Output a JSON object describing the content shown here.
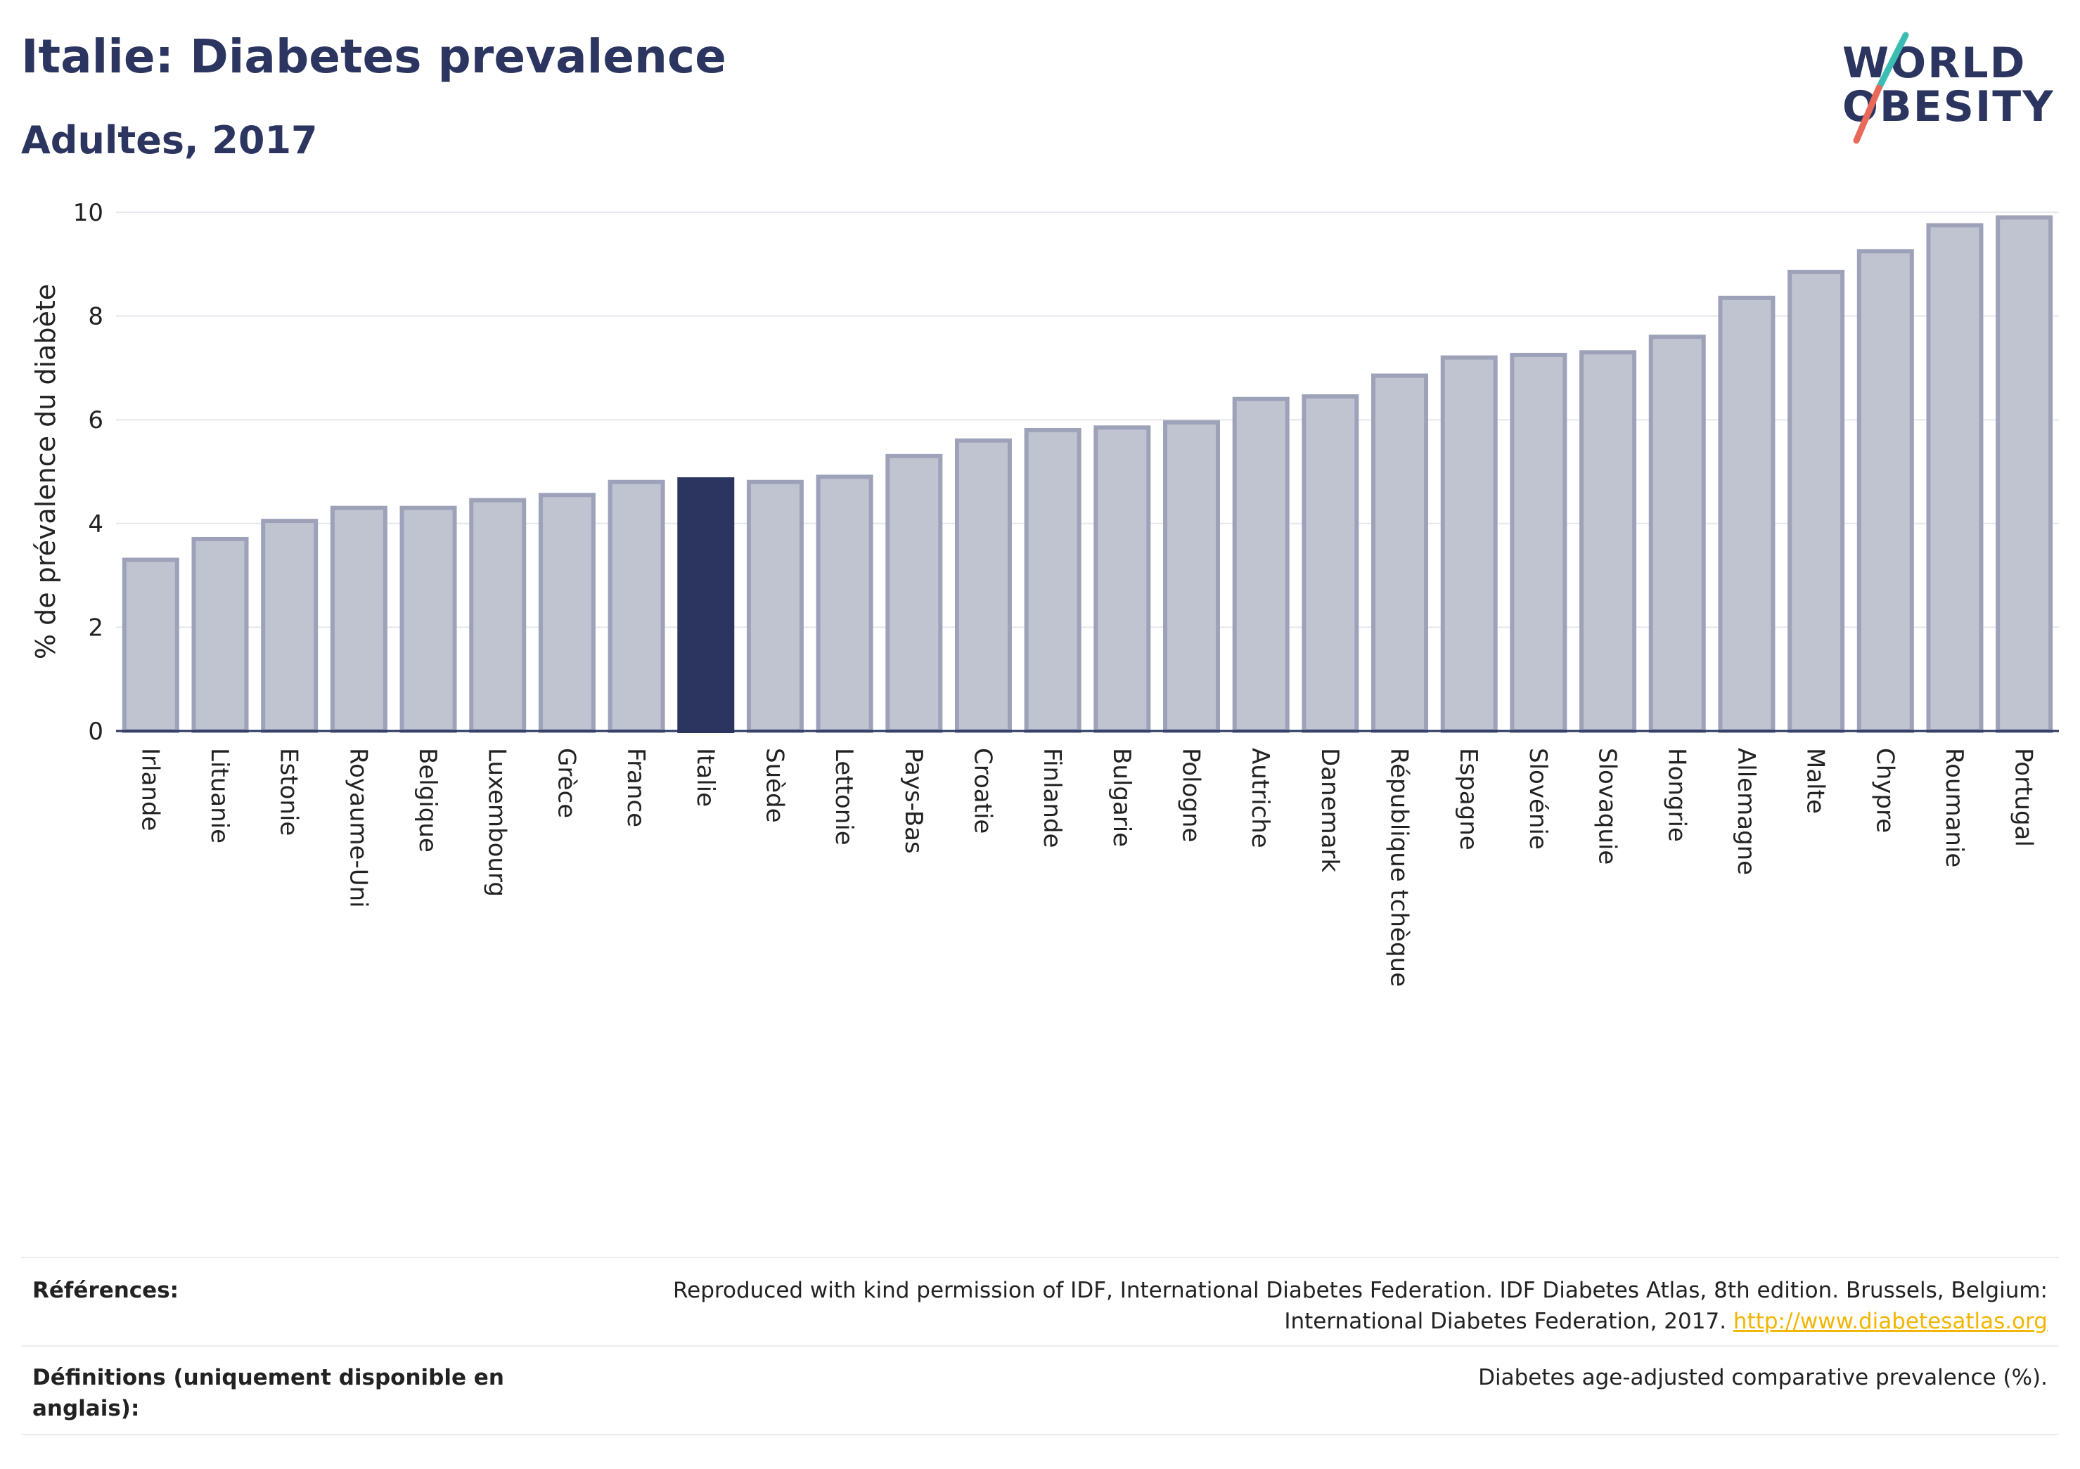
{
  "header": {
    "title": "Italie: Diabetes prevalence",
    "subtitle": "Adultes, 2017"
  },
  "logo": {
    "line1": "WORLD",
    "line2": "OBESITY",
    "colors": {
      "text": "#2b3560",
      "slash_top": "#3bbdb4",
      "slash_bottom": "#e8685a"
    }
  },
  "chart_data": {
    "type": "bar",
    "ylabel": "% de prévalence du diabète",
    "ylim": [
      0,
      10
    ],
    "yticks": [
      0,
      2,
      4,
      6,
      8,
      10
    ],
    "grid": true,
    "highlight": "Italie",
    "colors": {
      "bar": "#c0c3d0",
      "bar_border": "#9da2b9",
      "highlight": "#2b3560",
      "grid": "#e6e7ee",
      "axis": "#2b3560"
    },
    "categories": [
      "Irlande",
      "Lituanie",
      "Estonie",
      "Royaume-Uni",
      "Belgique",
      "Luxembourg",
      "Grèce",
      "France",
      "Italie",
      "Suède",
      "Lettonie",
      "Pays-Bas",
      "Croatie",
      "Finlande",
      "Bulgarie",
      "Pologne",
      "Autriche",
      "Danemark",
      "République tchèque",
      "Espagne",
      "Slovénie",
      "Slovaquie",
      "Hongrie",
      "Allemagne",
      "Malte",
      "Chypre",
      "Roumanie",
      "Portugal"
    ],
    "values": [
      3.3,
      3.7,
      4.05,
      4.3,
      4.3,
      4.45,
      4.55,
      4.8,
      4.85,
      4.8,
      4.9,
      5.3,
      5.6,
      5.8,
      5.85,
      5.95,
      6.4,
      6.45,
      6.85,
      7.2,
      7.25,
      7.3,
      7.6,
      8.35,
      8.85,
      9.25,
      9.75,
      9.9
    ]
  },
  "footer": {
    "references_label": "Références:",
    "references_text_line1": "Reproduced with kind permission of IDF, International Diabetes Federation. IDF Diabetes Atlas, 8th edition. Brussels, Belgium:",
    "references_text_line2": "International Diabetes Federation, 2017.",
    "references_link": "http://www.diabetesatlas.org",
    "definitions_label": "Définitions (uniquement disponible en anglais):",
    "definitions_text": "Diabetes age-adjusted comparative prevalence (%)."
  }
}
